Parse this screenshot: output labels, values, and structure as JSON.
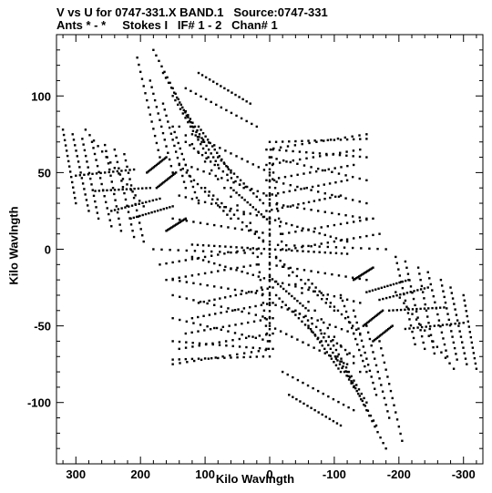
{
  "header": {
    "title": "V vs U for 0747-331.X BAND.1   Source:0747-331",
    "subtitle": "Ants * - *     Stokes I   IF# 1 - 2   Chan# 1"
  },
  "chart_data": {
    "type": "scatter",
    "title": "V vs U for 0747-331.X BAND.1   Source:0747-331",
    "subtitle": "Ants * - *     Stokes I   IF# 1 - 2   Chan# 1",
    "xlabel": "Kilo Wavlngth",
    "ylabel": "Kilo Wavlngth",
    "xlim": [
      330,
      -330
    ],
    "ylim": [
      -140,
      140
    ],
    "x_ticks": [
      300,
      200,
      100,
      0,
      -100,
      -200,
      -300
    ],
    "x_tick_labels": [
      "300",
      "200",
      "100",
      "0",
      "-100",
      "-200",
      "-300"
    ],
    "y_ticks": [
      100,
      50,
      0,
      -50,
      -100
    ],
    "y_tick_labels": [
      "100",
      "50",
      "0",
      "-50",
      "-100"
    ],
    "grid": false,
    "legend": "none",
    "colors": {
      "points": "#000000",
      "axes": "#000000",
      "background": "#ffffff"
    },
    "series": [
      {
        "tracks": [
          {
            "u": [
              300,
              210
            ],
            "v": [
              48,
              52
            ]
          },
          {
            "u": [
              285,
              195
            ],
            "v": [
              78,
              28
            ]
          },
          {
            "u": [
              270,
              185
            ],
            "v": [
              38,
              40
            ]
          },
          {
            "u": [
              245,
              170
            ],
            "v": [
              25,
              33
            ]
          },
          {
            "u": [
              215,
              150
            ],
            "v": [
              20,
              28
            ]
          },
          {
            "u": [
              190,
              160
            ],
            "v": [
              50,
              60
            ]
          },
          {
            "u": [
              175,
              145
            ],
            "v": [
              40,
              50
            ]
          },
          {
            "u": [
              160,
              130
            ],
            "v": [
              12,
              20
            ]
          },
          {
            "u": [
              180,
              120
            ],
            "v": [
              130,
              80
            ]
          },
          {
            "u": [
              165,
              105
            ],
            "v": [
              115,
              70
            ]
          },
          {
            "u": [
              150,
              95
            ],
            "v": [
              100,
              60
            ]
          },
          {
            "u": [
              130,
              80
            ],
            "v": [
              90,
              55
            ]
          },
          {
            "u": [
              110,
              60
            ],
            "v": [
              80,
              50
            ]
          },
          {
            "u": [
              100,
              10
            ],
            "v": [
              40,
              5
            ]
          },
          {
            "u": [
              140,
              60
            ],
            "v": [
              55,
              20
            ]
          },
          {
            "u": [
              130,
              40
            ],
            "v": [
              70,
              40
            ]
          },
          {
            "u": [
              80,
              10
            ],
            "v": [
              60,
              30
            ]
          },
          {
            "u": [
              60,
              0
            ],
            "v": [
              40,
              18
            ]
          },
          {
            "u": [
              5,
              -150
            ],
            "v": [
              65,
              75
            ]
          },
          {
            "u": [
              5,
              -140
            ],
            "v": [
              55,
              65
            ]
          },
          {
            "u": [
              5,
              -130
            ],
            "v": [
              45,
              55
            ]
          },
          {
            "u": [
              5,
              -120
            ],
            "v": [
              35,
              45
            ]
          },
          {
            "u": [
              5,
              -110
            ],
            "v": [
              25,
              35
            ]
          },
          {
            "u": [
              -20,
              -160
            ],
            "v": [
              10,
              20
            ]
          },
          {
            "u": [
              -30,
              -170
            ],
            "v": [
              0,
              10
            ]
          },
          {
            "u": [
              0,
              -20
            ],
            "v": [
              70,
              0
            ]
          },
          {
            "u": [
              0,
              -180
            ],
            "v": [
              3,
              0
            ]
          },
          {
            "u": [
              120,
              0
            ],
            "v": [
              3,
              0
            ]
          },
          {
            "u": [
              0,
              -140
            ],
            "v": [
              0,
              -80
            ]
          },
          {
            "u": [
              0,
              0
            ],
            "v": [
              -5,
              -60
            ]
          },
          {
            "u": [
              -300,
              -320
            ],
            "v": [
              -30,
              -78
            ]
          },
          {
            "u": [
              -280,
              -305
            ],
            "v": [
              -25,
              -75
            ]
          },
          {
            "u": [
              -265,
              -290
            ],
            "v": [
              -20,
              -72
            ]
          },
          {
            "u": [
              -245,
              -275
            ],
            "v": [
              -15,
              -70
            ]
          },
          {
            "u": [
              -230,
              -255
            ],
            "v": [
              -12,
              -68
            ]
          },
          {
            "u": [
              -210,
              -240
            ],
            "v": [
              -8,
              -65
            ]
          },
          {
            "u": [
              -195,
              -225
            ],
            "v": [
              -5,
              -62
            ]
          },
          {
            "u": [
              -170,
              -205
            ],
            "v": [
              -60,
              -125
            ]
          },
          {
            "u": [
              -150,
              -185
            ],
            "v": [
              -50,
              -110
            ]
          },
          {
            "u": [
              -130,
              -165
            ],
            "v": [
              -40,
              -95
            ]
          },
          {
            "u": [
              -110,
              -150
            ],
            "v": [
              -30,
              -80
            ]
          },
          {
            "u": [
              150,
              0
            ],
            "v": [
              -20,
              -30
            ]
          },
          {
            "u": [
              150,
              0
            ],
            "v": [
              -30,
              -45
            ]
          },
          {
            "u": [
              150,
              0
            ],
            "v": [
              -45,
              -60
            ]
          },
          {
            "u": [
              150,
              5
            ],
            "v": [
              -60,
              -65
            ]
          },
          {
            "u": [
              150,
              10
            ],
            "v": [
              -72,
              -70
            ]
          },
          {
            "u": [
              120,
              0
            ],
            "v": [
              -5,
              -20
            ]
          },
          {
            "u": [
              0,
              -150
            ],
            "v": [
              -10,
              -20
            ]
          },
          {
            "u": [
              0,
              -140
            ],
            "v": [
              -20,
              -35
            ]
          },
          {
            "u": [
              0,
              -130
            ],
            "v": [
              -35,
              -55
            ]
          },
          {
            "u": [
              0,
              -120
            ],
            "v": [
              -50,
              -75
            ]
          },
          {
            "u": [
              -20,
              -130
            ],
            "v": [
              -80,
              -105
            ]
          },
          {
            "u": [
              -30,
              -110
            ],
            "v": [
              -95,
              -115
            ]
          }
        ]
      }
    ]
  }
}
